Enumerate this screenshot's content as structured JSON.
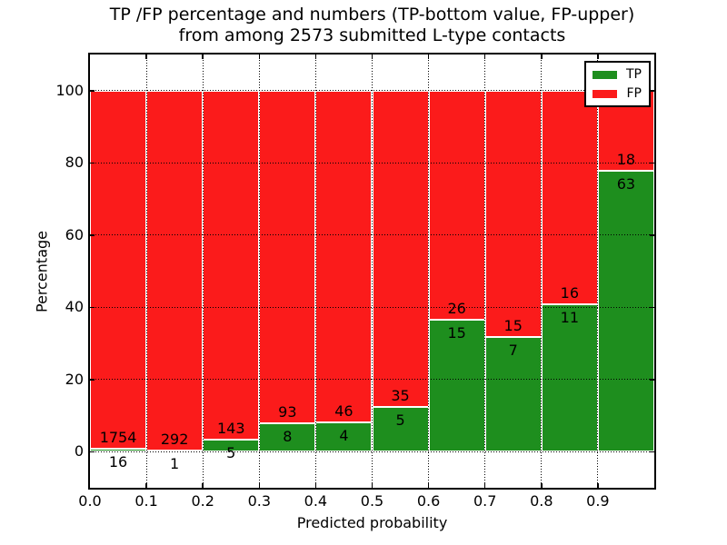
{
  "figure": {
    "title_line1": "TP /FP percentage and numbers (TP-bottom value, FP-upper)",
    "title_line2": "from among 2573 submitted L-type contacts"
  },
  "chart_data": {
    "type": "bar",
    "stacked": true,
    "normalized": "percent",
    "title": "TP /FP percentage and numbers (TP-bottom value, FP-upper) from among 2573 submitted L-type contacts",
    "xlabel": "Predicted probability",
    "ylabel": "Percentage",
    "xlim": [
      0.0,
      1.0
    ],
    "ylim": [
      -10,
      110
    ],
    "bin_edges": [
      0.0,
      0.1,
      0.2,
      0.3,
      0.4,
      0.5,
      0.6,
      0.7,
      0.8,
      0.9,
      1.0
    ],
    "xtick_labels": [
      "0.0",
      "0.1",
      "0.2",
      "0.3",
      "0.4",
      "0.5",
      "0.6",
      "0.7",
      "0.8",
      "0.9"
    ],
    "ytick_values": [
      0,
      20,
      40,
      60,
      80,
      100
    ],
    "grid": true,
    "legend_position": "upper right",
    "series": [
      {
        "name": "TP",
        "color": "#1e8e1e",
        "counts": [
          16,
          1,
          5,
          8,
          4,
          5,
          15,
          7,
          11,
          63
        ]
      },
      {
        "name": "FP",
        "color": "#fb1b1b",
        "counts": [
          1754,
          292,
          143,
          93,
          46,
          35,
          26,
          15,
          16,
          18
        ]
      }
    ],
    "bar_edge_color": "#ffffff",
    "grid_color": "#000000",
    "total_contacts": 2573
  }
}
